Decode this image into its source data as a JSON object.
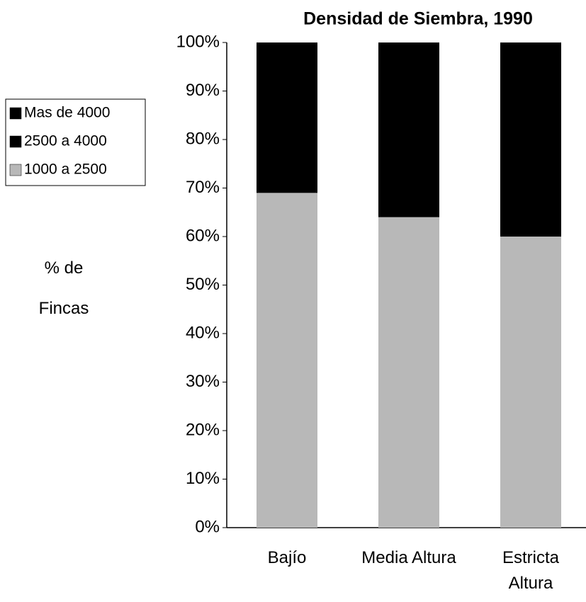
{
  "chart_data": {
    "type": "stacked_bar",
    "title": "Densidad de Siembra, 1990",
    "y_label": "% de Fincas",
    "categories": [
      "Bajío",
      "Media Altura",
      "Estricta Altura"
    ],
    "series": [
      {
        "name": "Mas de 4000",
        "color": "#000000",
        "values": [
          0,
          0,
          0
        ]
      },
      {
        "name": "2500 a 4000",
        "color": "#000000",
        "values": [
          31,
          36,
          40
        ]
      },
      {
        "name": "1000 a 2500",
        "color": "#b8b8b8",
        "values": [
          69,
          64,
          60
        ]
      }
    ],
    "ylim": [
      0,
      100
    ],
    "yticks": [
      {
        "value": 0,
        "label": "0%"
      },
      {
        "value": 10,
        "label": "10%"
      },
      {
        "value": 20,
        "label": "20%"
      },
      {
        "value": 30,
        "label": "30%"
      },
      {
        "value": 40,
        "label": "40%"
      },
      {
        "value": 50,
        "label": "50%"
      },
      {
        "value": 60,
        "label": "60%"
      },
      {
        "value": 70,
        "label": "70%"
      },
      {
        "value": 80,
        "label": "80%"
      },
      {
        "value": 90,
        "label": "90%"
      },
      {
        "value": 100,
        "label": "100%"
      }
    ],
    "legend": "left"
  }
}
